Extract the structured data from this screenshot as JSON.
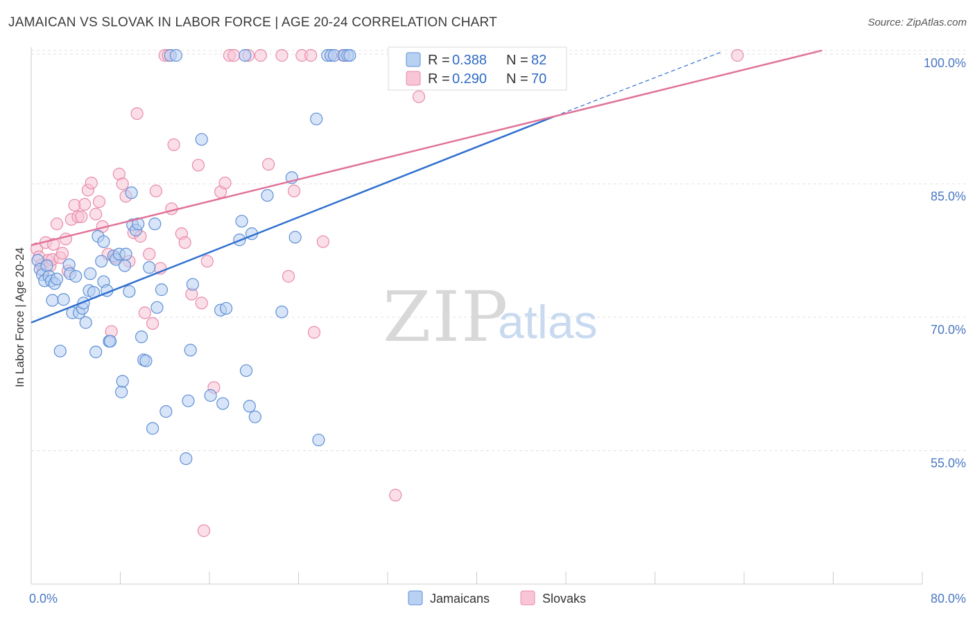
{
  "title": "JAMAICAN VS SLOVAK IN LABOR FORCE | AGE 20-24 CORRELATION CHART",
  "source": "Source: ZipAtlas.com",
  "watermark": {
    "zip": "ZIP",
    "atlas": "atlas"
  },
  "colors": {
    "jamaicans_fill": "#b8d0f2",
    "jamaicans_stroke": "#5e8fd6",
    "jamaicans_line": "#2f6fcf",
    "slovaks_fill": "#f7c5d5",
    "slovaks_stroke": "#e88aa8",
    "slovaks_line": "#e07298",
    "grid": "#e2e2e2",
    "tick_label": "#4a78c2"
  },
  "legend": {
    "rows": [
      {
        "r_label": "R =",
        "r_value": "0.388",
        "n_label": "N =",
        "n_value": "82"
      },
      {
        "r_label": "R =",
        "r_value": "0.290",
        "n_label": "N =",
        "n_value": "70"
      }
    ]
  },
  "chart_data": {
    "type": "scatter",
    "title": "JAMAICAN VS SLOVAK IN LABOR FORCE | AGE 20-24 CORRELATION CHART",
    "xlabel": "",
    "ylabel": "In Labor Force | Age 20-24",
    "xlim": [
      0,
      80
    ],
    "ylim": [
      40,
      101
    ],
    "x_tick_labels": [
      "0.0%",
      "80.0%"
    ],
    "y_ticks": [
      55,
      70,
      85,
      100
    ],
    "y_tick_labels": [
      "55.0%",
      "70.0%",
      "85.0%",
      "100.0%"
    ],
    "legend_position": "bottom-center",
    "series": [
      {
        "name": "Jamaicans",
        "r": 0.388,
        "n": 82,
        "trend": {
          "x0": 0,
          "y0": 69.4,
          "x1": 47,
          "y1": 92.6,
          "dash_x1": 62,
          "dash_y1": 100
        },
        "points": [
          [
            0.6,
            76.4
          ],
          [
            0.8,
            75.4
          ],
          [
            1.0,
            74.8
          ],
          [
            1.2,
            74.1
          ],
          [
            1.4,
            75.8
          ],
          [
            1.6,
            74.6
          ],
          [
            1.8,
            74.1
          ],
          [
            1.9,
            71.9
          ],
          [
            2.1,
            73.8
          ],
          [
            2.3,
            74.3
          ],
          [
            2.6,
            66.2
          ],
          [
            2.9,
            72.0
          ],
          [
            3.4,
            75.9
          ],
          [
            3.5,
            74.9
          ],
          [
            3.7,
            70.5
          ],
          [
            4.0,
            74.6
          ],
          [
            4.3,
            70.5
          ],
          [
            4.6,
            71.0
          ],
          [
            4.7,
            71.6
          ],
          [
            4.9,
            69.4
          ],
          [
            5.2,
            73.0
          ],
          [
            5.3,
            74.9
          ],
          [
            5.6,
            72.8
          ],
          [
            5.8,
            66.1
          ],
          [
            6.0,
            79.1
          ],
          [
            6.3,
            76.3
          ],
          [
            6.5,
            78.5
          ],
          [
            6.5,
            74.0
          ],
          [
            6.8,
            73.0
          ],
          [
            7.0,
            67.3
          ],
          [
            7.1,
            67.3
          ],
          [
            7.4,
            76.9
          ],
          [
            7.6,
            76.5
          ],
          [
            7.9,
            77.1
          ],
          [
            8.1,
            61.6
          ],
          [
            8.2,
            62.8
          ],
          [
            8.4,
            75.8
          ],
          [
            8.5,
            77.1
          ],
          [
            8.8,
            72.9
          ],
          [
            9.0,
            84.0
          ],
          [
            9.1,
            80.4
          ],
          [
            9.4,
            79.8
          ],
          [
            9.6,
            80.5
          ],
          [
            9.9,
            67.8
          ],
          [
            10.1,
            65.2
          ],
          [
            10.3,
            65.1
          ],
          [
            10.6,
            75.6
          ],
          [
            10.9,
            57.5
          ],
          [
            11.1,
            80.5
          ],
          [
            11.3,
            71.1
          ],
          [
            11.7,
            73.1
          ],
          [
            12.1,
            59.4
          ],
          [
            12.5,
            100
          ],
          [
            13.0,
            100
          ],
          [
            13.9,
            54.1
          ],
          [
            14.1,
            60.6
          ],
          [
            14.3,
            66.3
          ],
          [
            14.5,
            73.7
          ],
          [
            15.3,
            90.0
          ],
          [
            16.1,
            61.2
          ],
          [
            17.0,
            70.8
          ],
          [
            17.2,
            60.3
          ],
          [
            17.5,
            71.0
          ],
          [
            18.7,
            78.7
          ],
          [
            18.9,
            80.8
          ],
          [
            19.2,
            100
          ],
          [
            19.3,
            64.0
          ],
          [
            19.6,
            60.0
          ],
          [
            19.8,
            79.4
          ],
          [
            20.1,
            58.8
          ],
          [
            21.2,
            83.7
          ],
          [
            22.5,
            70.6
          ],
          [
            23.4,
            85.7
          ],
          [
            23.7,
            79.0
          ],
          [
            25.6,
            92.3
          ],
          [
            25.8,
            56.2
          ],
          [
            26.6,
            100
          ],
          [
            26.9,
            100
          ],
          [
            27.2,
            100
          ],
          [
            28.1,
            100
          ],
          [
            28.4,
            100
          ],
          [
            28.6,
            100
          ]
        ]
      },
      {
        "name": "Slovaks",
        "r": 0.29,
        "n": 70,
        "trend": {
          "x0": 0,
          "y0": 78.1,
          "x1": 71,
          "y1": 100
        },
        "points": [
          [
            0.5,
            77.7
          ],
          [
            0.7,
            76.8
          ],
          [
            0.9,
            75.9
          ],
          [
            1.1,
            75.2
          ],
          [
            1.3,
            78.4
          ],
          [
            1.5,
            76.4
          ],
          [
            1.7,
            75.8
          ],
          [
            1.9,
            76.5
          ],
          [
            2.0,
            78.2
          ],
          [
            2.3,
            80.5
          ],
          [
            2.6,
            76.7
          ],
          [
            2.8,
            77.2
          ],
          [
            3.1,
            78.8
          ],
          [
            3.3,
            75.2
          ],
          [
            3.6,
            81.0
          ],
          [
            3.9,
            82.6
          ],
          [
            4.2,
            81.3
          ],
          [
            4.5,
            81.3
          ],
          [
            4.8,
            82.7
          ],
          [
            5.1,
            84.3
          ],
          [
            5.4,
            85.1
          ],
          [
            5.8,
            81.6
          ],
          [
            6.1,
            83.0
          ],
          [
            6.4,
            80.2
          ],
          [
            6.9,
            77.1
          ],
          [
            7.2,
            68.4
          ],
          [
            7.5,
            76.7
          ],
          [
            7.9,
            86.1
          ],
          [
            8.2,
            85.0
          ],
          [
            8.5,
            83.6
          ],
          [
            8.8,
            76.3
          ],
          [
            9.2,
            79.5
          ],
          [
            9.5,
            92.9
          ],
          [
            9.8,
            79.1
          ],
          [
            10.2,
            70.5
          ],
          [
            10.6,
            77.1
          ],
          [
            10.9,
            69.3
          ],
          [
            11.2,
            84.2
          ],
          [
            11.6,
            75.5
          ],
          [
            12.0,
            100
          ],
          [
            12.3,
            100
          ],
          [
            12.6,
            82.2
          ],
          [
            12.8,
            89.4
          ],
          [
            13.5,
            79.4
          ],
          [
            13.8,
            78.4
          ],
          [
            14.4,
            72.6
          ],
          [
            15.0,
            87.1
          ],
          [
            15.3,
            71.6
          ],
          [
            15.5,
            46.0
          ],
          [
            15.8,
            76.3
          ],
          [
            16.4,
            62.1
          ],
          [
            17.0,
            84.1
          ],
          [
            17.4,
            85.1
          ],
          [
            17.8,
            100
          ],
          [
            18.2,
            100
          ],
          [
            19.5,
            100
          ],
          [
            20.6,
            100
          ],
          [
            21.3,
            87.2
          ],
          [
            22.5,
            100
          ],
          [
            23.1,
            74.6
          ],
          [
            23.6,
            84.2
          ],
          [
            24.3,
            100
          ],
          [
            25.4,
            68.3
          ],
          [
            26.2,
            78.5
          ],
          [
            26.9,
            100
          ],
          [
            28.0,
            100
          ],
          [
            32.7,
            50.0
          ],
          [
            34.8,
            94.8
          ],
          [
            63.4,
            100
          ],
          [
            25.1,
            100
          ]
        ]
      }
    ]
  }
}
